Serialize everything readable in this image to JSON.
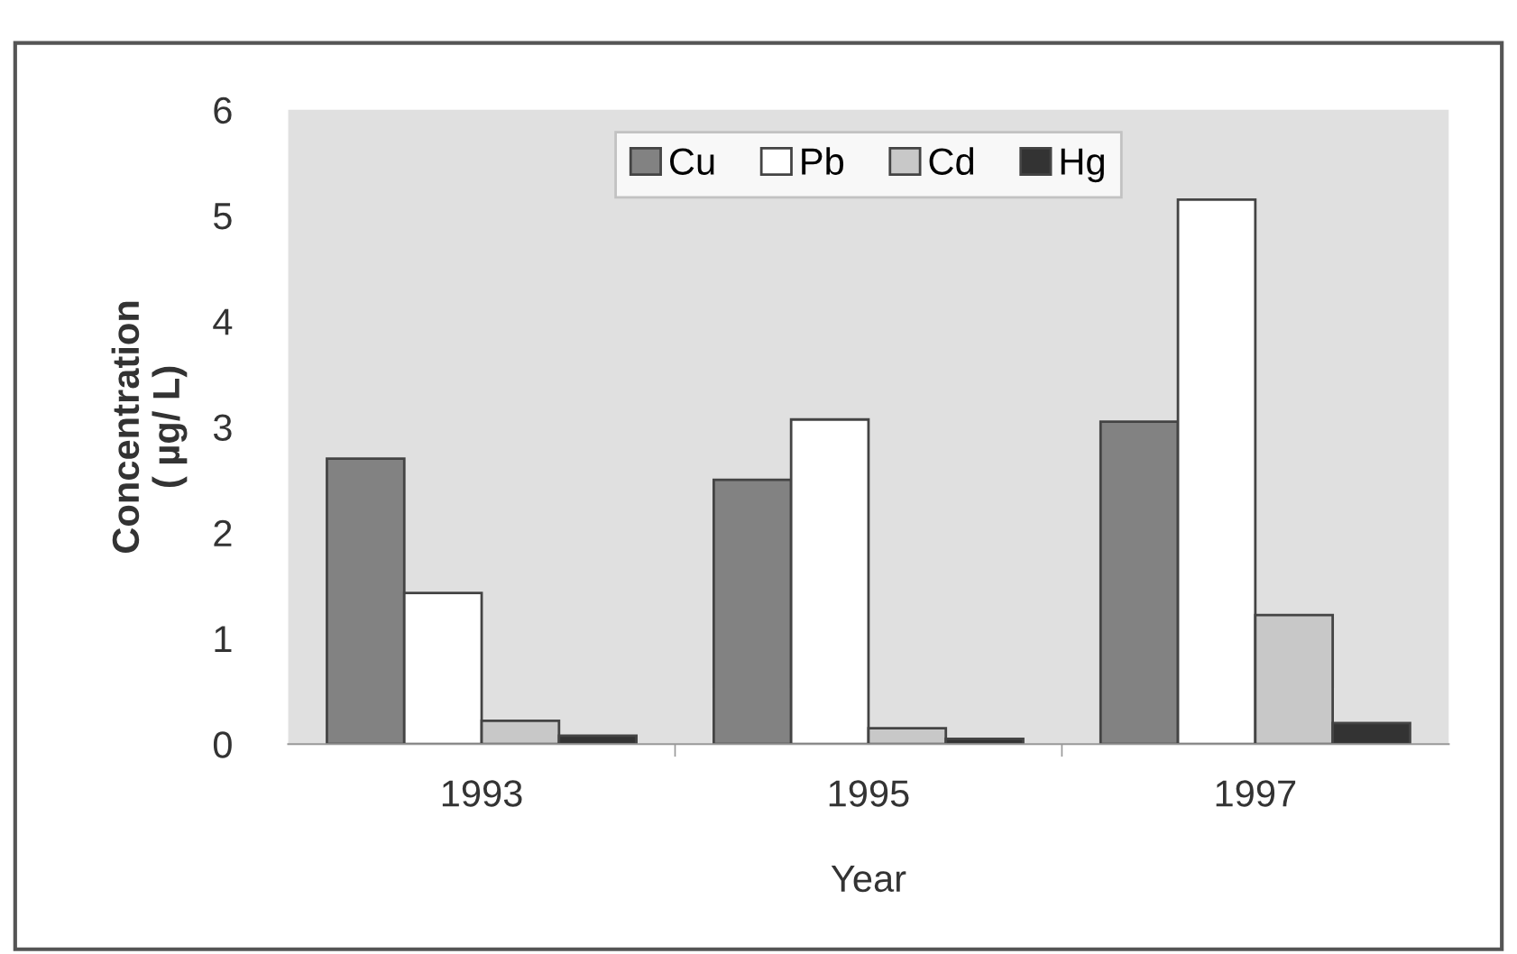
{
  "chart_data": {
    "type": "bar",
    "xlabel": "Year",
    "ylabel": "Concentration\n( µg/ L)",
    "categories": [
      "1993",
      "1995",
      "1997"
    ],
    "series": [
      {
        "name": "Cu",
        "color": "#828282",
        "values": [
          2.7,
          2.5,
          3.05
        ]
      },
      {
        "name": "Pb",
        "color": "#ffffff",
        "values": [
          1.43,
          3.07,
          5.15
        ]
      },
      {
        "name": "Cd",
        "color": "#c8c8c8",
        "values": [
          0.22,
          0.15,
          1.22
        ]
      },
      {
        "name": "Hg",
        "color": "#333333",
        "values": [
          0.08,
          0.05,
          0.2
        ]
      }
    ],
    "ylim": [
      0,
      6
    ],
    "yticks": [
      0,
      1,
      2,
      3,
      4,
      5,
      6
    ],
    "grid": false,
    "legend": "top"
  }
}
